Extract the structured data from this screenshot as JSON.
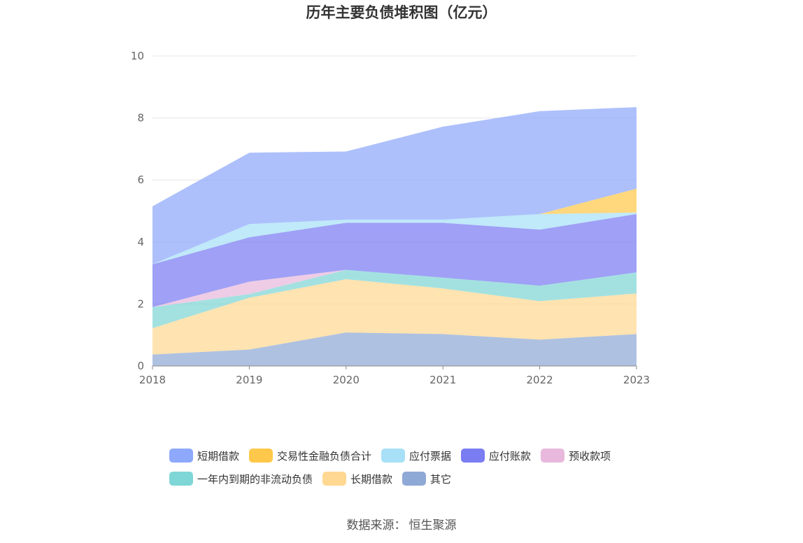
{
  "chart_data": {
    "type": "area",
    "stacked": true,
    "title": "历年主要负债堆积图（亿元）",
    "xlabel": "",
    "ylabel": "",
    "ylim": [
      0,
      10
    ],
    "yticks": [
      0,
      2,
      4,
      6,
      8,
      10
    ],
    "categories": [
      "2018",
      "2019",
      "2020",
      "2021",
      "2022",
      "2023"
    ],
    "series": [
      {
        "name": "其它",
        "color": "#8fa9d6",
        "values": [
          0.37,
          0.53,
          1.08,
          1.03,
          0.85,
          1.03
        ]
      },
      {
        "name": "长期借款",
        "color": "#ffd891",
        "values": [
          0.85,
          1.67,
          1.72,
          1.47,
          1.24,
          1.31
        ]
      },
      {
        "name": "一年内到期的非流动负债",
        "color": "#7fd6d6",
        "values": [
          0.68,
          0.12,
          0.3,
          0.35,
          0.5,
          0.68
        ]
      },
      {
        "name": "预收款项",
        "color": "#e8b9dc",
        "values": [
          0.0,
          0.4,
          0.0,
          0.0,
          0.0,
          0.0
        ]
      },
      {
        "name": "应付账款",
        "color": "#7a7cf2",
        "values": [
          1.38,
          1.43,
          1.52,
          1.77,
          1.81,
          1.88
        ]
      },
      {
        "name": "应付票据",
        "color": "#a8e0f7",
        "values": [
          0.0,
          0.43,
          0.1,
          0.1,
          0.5,
          0.05
        ]
      },
      {
        "name": "交易性金融负债合计",
        "color": "#ffc84a",
        "values": [
          0.0,
          0.0,
          0.0,
          0.0,
          0.0,
          0.77
        ]
      },
      {
        "name": "短期借款",
        "color": "#8ea8fb",
        "values": [
          1.87,
          2.3,
          2.2,
          3.0,
          3.32,
          2.63
        ]
      }
    ],
    "legend_position": "bottom"
  },
  "legend": {
    "row1": [
      {
        "label": "短期借款",
        "color": "#8ea8fb"
      },
      {
        "label": "交易性金融负债合计",
        "color": "#ffc84a"
      },
      {
        "label": "应付票据",
        "color": "#a8e0f7"
      },
      {
        "label": "应付账款",
        "color": "#7a7cf2"
      },
      {
        "label": "预收款项",
        "color": "#e8b9dc"
      }
    ],
    "row2": [
      {
        "label": "一年内到期的非流动负债",
        "color": "#7fd6d6"
      },
      {
        "label": "长期借款",
        "color": "#ffd891"
      },
      {
        "label": "其它",
        "color": "#8fa9d6"
      }
    ]
  },
  "source": {
    "label": "数据来源：",
    "value": "恒生聚源"
  }
}
